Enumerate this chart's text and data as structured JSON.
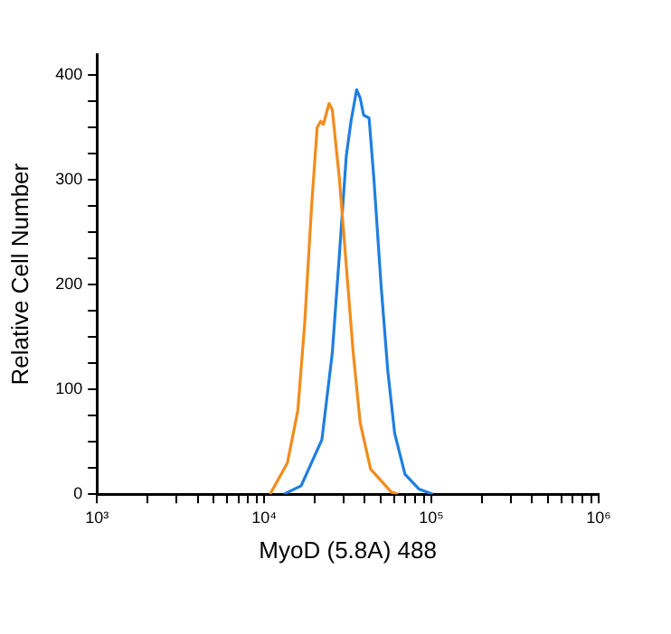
{
  "chart_data": {
    "type": "line",
    "xlabel": "MyoD (5.8A) 488",
    "ylabel": "Relative Cell Number",
    "log": "x",
    "grid": false,
    "legend": false,
    "marker": "none",
    "xlim": [
      1000,
      1000000
    ],
    "xticks": [
      {
        "value": 1000,
        "label": "10³"
      },
      {
        "value": 2000,
        "label": null
      },
      {
        "value": 3000,
        "label": null
      },
      {
        "value": 4000,
        "label": null
      },
      {
        "value": 5000,
        "label": null
      },
      {
        "value": 6000,
        "label": null
      },
      {
        "value": 7000,
        "label": null
      },
      {
        "value": 8000,
        "label": null
      },
      {
        "value": 9000,
        "label": null
      },
      {
        "value": 10000,
        "label": "10⁴"
      },
      {
        "value": 20000,
        "label": null
      },
      {
        "value": 30000,
        "label": null
      },
      {
        "value": 40000,
        "label": null
      },
      {
        "value": 50000,
        "label": null
      },
      {
        "value": 60000,
        "label": null
      },
      {
        "value": 70000,
        "label": null
      },
      {
        "value": 80000,
        "label": null
      },
      {
        "value": 90000,
        "label": null
      },
      {
        "value": 100000,
        "label": "10⁵"
      },
      {
        "value": 200000,
        "label": null
      },
      {
        "value": 300000,
        "label": null
      },
      {
        "value": 400000,
        "label": null
      },
      {
        "value": 500000,
        "label": null
      },
      {
        "value": 600000,
        "label": null
      },
      {
        "value": 700000,
        "label": null
      },
      {
        "value": 800000,
        "label": null
      },
      {
        "value": 900000,
        "label": null
      },
      {
        "value": 1000000,
        "label": "10⁶"
      }
    ],
    "ylim": [
      0,
      420
    ],
    "yticks": [
      0,
      {
        "value": 25,
        "label": null
      },
      {
        "value": 50,
        "label": null
      },
      {
        "value": 75,
        "label": null
      },
      100,
      {
        "value": 125,
        "label": null
      },
      {
        "value": 150,
        "label": null
      },
      {
        "value": 175,
        "label": null
      },
      200,
      {
        "value": 225,
        "label": null
      },
      {
        "value": 250,
        "label": null
      },
      {
        "value": 275,
        "label": null
      },
      300,
      {
        "value": 325,
        "label": null
      },
      {
        "value": 350,
        "label": null
      },
      {
        "value": 375,
        "label": null
      },
      400
    ],
    "series": [
      {
        "color": "#f28c1c",
        "x": [
          10840,
          13770,
          15890,
          17460,
          19190,
          20730,
          21770,
          22600,
          24420,
          25540,
          28170,
          30970,
          34060,
          37520,
          43280,
          57580,
          63240
        ],
        "values": [
          0,
          30,
          80,
          163,
          274,
          350,
          356,
          353,
          373,
          367,
          301,
          218,
          135,
          68,
          24,
          2,
          0
        ]
      },
      {
        "color": "#1f7fe0",
        "x": [
          13120,
          16630,
          22130,
          25540,
          28170,
          30970,
          33050,
          35700,
          37520,
          39290,
          42390,
          45290,
          49910,
          54820,
          60290,
          69500,
          84100,
          102000
        ],
        "values": [
          0,
          8,
          52,
          135,
          229,
          323,
          356,
          386,
          378,
          362,
          359,
          301,
          201,
          118,
          58,
          19,
          5,
          0
        ]
      }
    ]
  }
}
